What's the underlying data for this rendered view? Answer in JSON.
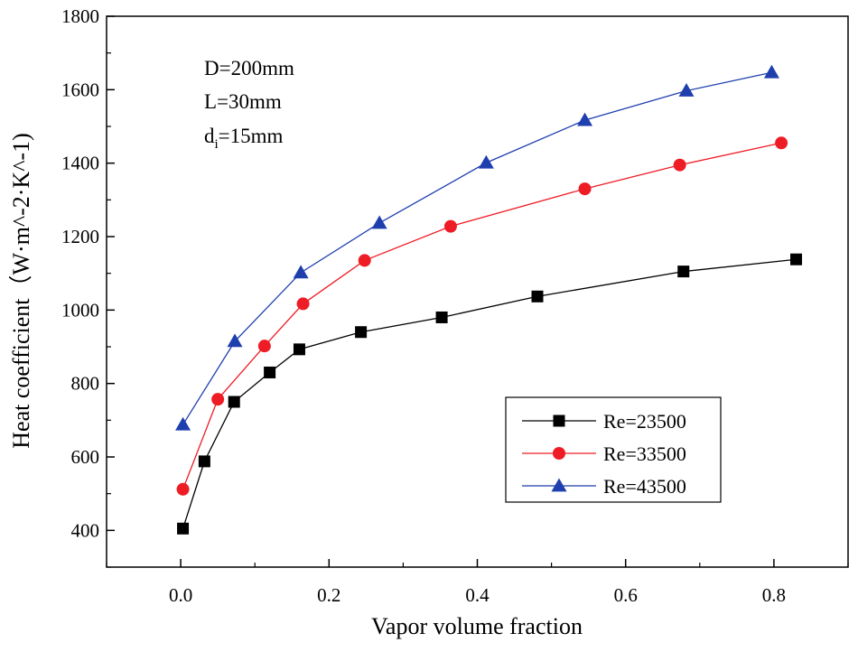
{
  "chart_data": {
    "type": "line",
    "xlabel": "Vapor volume fraction",
    "ylabel": "Heat coefficient（W·m^-2·K^-1)",
    "xlim": [
      -0.1,
      0.9
    ],
    "ylim": [
      300,
      1800
    ],
    "x_ticks": [
      "0.0",
      "0.2",
      "0.4",
      "0.6",
      "0.8"
    ],
    "y_ticks": [
      "400",
      "600",
      "800",
      "1000",
      "1200",
      "1400",
      "1600",
      "1800"
    ],
    "annotation": {
      "line1": "D=200mm",
      "line2": "L=30mm",
      "line3_main": "d",
      "line3_sub": "i",
      "line3_rest": "=15mm"
    },
    "legend_position": "bottom-right",
    "series": [
      {
        "name": "Re=23500",
        "color": "#000000",
        "marker": "square",
        "x": [
          0.003,
          0.032,
          0.072,
          0.12,
          0.16,
          0.243,
          0.352,
          0.481,
          0.678,
          0.83
        ],
        "y": [
          405,
          588,
          750,
          830,
          893,
          940,
          980,
          1037,
          1105,
          1138
        ]
      },
      {
        "name": "Re=33500",
        "color": "#ee1c25",
        "marker": "circle",
        "x": [
          0.003,
          0.05,
          0.113,
          0.165,
          0.248,
          0.364,
          0.545,
          0.673,
          0.81
        ],
        "y": [
          512,
          757,
          902,
          1017,
          1135,
          1228,
          1330,
          1395,
          1455
        ]
      },
      {
        "name": "Re=43500",
        "color": "#1f3fae",
        "marker": "triangle",
        "x": [
          0.003,
          0.073,
          0.162,
          0.268,
          0.412,
          0.545,
          0.682,
          0.797
        ],
        "y": [
          688,
          915,
          1102,
          1237,
          1401,
          1517,
          1597,
          1647
        ]
      }
    ]
  }
}
